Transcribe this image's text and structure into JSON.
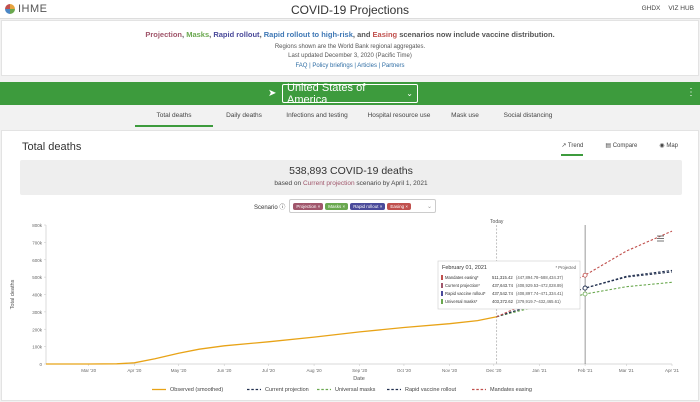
{
  "header": {
    "logo_text": "IHME",
    "title": "COVID-19 Projections",
    "links": [
      "GHDX",
      "VIZ HUB"
    ]
  },
  "banner": {
    "headline_parts": {
      "projection": "Projection",
      "masks": "Masks",
      "rapid_rollout": "Rapid rollout",
      "rapid_rollout_high_risk": "Rapid rollout to high-risk",
      "and": "and",
      "easing": "Easing",
      "tail": "scenarios now include vaccine distribution."
    },
    "regions_note": "Regions shown are the World Bank regional aggregates.",
    "last_updated": "Last updated December 3, 2020 (Pacific Time)",
    "links": [
      "FAQ",
      "Policy briefings",
      "Articles",
      "Partners"
    ]
  },
  "location": {
    "selected": "United States of America"
  },
  "tabs": [
    {
      "label": "Total deaths",
      "active": true
    },
    {
      "label": "Daily deaths",
      "active": false
    },
    {
      "label": "Infections and testing",
      "active": false
    },
    {
      "label": "Hospital resource use",
      "active": false
    },
    {
      "label": "Mask use",
      "active": false
    },
    {
      "label": "Social distancing",
      "active": false
    }
  ],
  "panel": {
    "title": "Total deaths",
    "view_tabs": [
      {
        "label": "Trend",
        "icon": "trend-icon",
        "active": true
      },
      {
        "label": "Compare",
        "icon": "compare-icon",
        "active": false
      },
      {
        "label": "Map",
        "icon": "globe-icon",
        "active": false
      }
    ]
  },
  "summary": {
    "headline": "538,893 COVID-19 deaths",
    "pre": "based on",
    "scenario": "Current projection",
    "post": "scenario by April 1, 2021"
  },
  "scenario": {
    "label": "Scenario",
    "chips": [
      {
        "label": "Projection",
        "color": "#a0566b"
      },
      {
        "label": "Masks",
        "color": "#6aa84f"
      },
      {
        "label": "Rapid rollout",
        "color": "#4a4a9a"
      },
      {
        "label": "Easing",
        "color": "#c0504d"
      }
    ]
  },
  "chart_data": {
    "type": "line",
    "xlabel": "Date",
    "ylabel": "Total deaths",
    "ylim": [
      0,
      800000
    ],
    "yticks": [
      0,
      100000,
      200000,
      300000,
      400000,
      500000,
      600000,
      700000,
      800000
    ],
    "ytick_labels": [
      "0",
      "100k",
      "200k",
      "300k",
      "400k",
      "500k",
      "600k",
      "700k",
      "800k"
    ],
    "xlim": [
      "2020-02-01",
      "2021-04-01"
    ],
    "xtick_dates": [
      "2020-03-01",
      "2020-04-01",
      "2020-05-01",
      "2020-06-01",
      "2020-07-01",
      "2020-08-01",
      "2020-09-01",
      "2020-10-01",
      "2020-11-01",
      "2020-12-01",
      "2021-01-01",
      "2021-02-01",
      "2021-03-01",
      "2021-04-01"
    ],
    "xtick_labels": [
      "Mar '20",
      "Apr '20",
      "May '20",
      "Jun '20",
      "Jul '20",
      "Aug '20",
      "Sep '20",
      "Oct '20",
      "Nov '20",
      "Dec '20",
      "Jan '21",
      "Feb '21",
      "Mar '21",
      "Apr '21"
    ],
    "today": {
      "label": "Today",
      "date": "2020-12-03"
    },
    "hover_date": "2021-02-01",
    "series": [
      {
        "name": "Observed (smoothed)",
        "color": "#e8a317",
        "dash": false,
        "x": [
          "2020-02-01",
          "2020-03-01",
          "2020-03-20",
          "2020-04-01",
          "2020-04-15",
          "2020-05-01",
          "2020-05-15",
          "2020-06-01",
          "2020-07-01",
          "2020-08-01",
          "2020-09-01",
          "2020-10-01",
          "2020-11-01",
          "2020-11-20",
          "2020-12-03"
        ],
        "y": [
          0,
          0,
          1000,
          7000,
          30000,
          62000,
          85000,
          105000,
          128000,
          155000,
          185000,
          210000,
          232000,
          250000,
          272000
        ]
      },
      {
        "name": "Current projection",
        "color": "#22304f",
        "dash": true,
        "x": [
          "2020-12-03",
          "2021-01-01",
          "2021-02-01",
          "2021-03-01",
          "2021-04-01"
        ],
        "y": [
          272000,
          350000,
          437000,
          505000,
          538893
        ]
      },
      {
        "name": "Universal masks",
        "color": "#6aa84f",
        "dash": true,
        "x": [
          "2020-12-03",
          "2021-01-01",
          "2021-02-01",
          "2021-03-01",
          "2021-04-01"
        ],
        "y": [
          272000,
          335000,
          403000,
          445000,
          470000
        ]
      },
      {
        "name": "Rapid vaccine rollout",
        "color": "#22304f",
        "dash": true,
        "x": [
          "2020-12-03",
          "2021-01-01",
          "2021-02-01",
          "2021-03-01",
          "2021-04-01"
        ],
        "y": [
          272000,
          350000,
          437000,
          500000,
          530000
        ]
      },
      {
        "name": "Mandates easing",
        "color": "#c0504d",
        "dash": true,
        "x": [
          "2020-12-03",
          "2021-01-01",
          "2021-02-01",
          "2021-03-01",
          "2021-04-01"
        ],
        "y": [
          272000,
          380000,
          511000,
          650000,
          765000
        ]
      }
    ],
    "tooltip": {
      "date": "February 01, 2021",
      "note": "* Projected",
      "rows": [
        {
          "label": "Mandates easing*",
          "value": "511,315.42",
          "range": "(447,894.78–588,434.37)",
          "color": "#c0504d"
        },
        {
          "label": "Current projection*",
          "value": "437,643.74",
          "range": "(408,929.53–472,028.89)",
          "color": "#a0566b"
        },
        {
          "label": "Rapid vaccine rollout*",
          "value": "437,542.74",
          "range": "(408,897.74–471,334.41)",
          "color": "#4a4a9a"
        },
        {
          "label": "Universal masks*",
          "value": "403,372.62",
          "range": "(379,919.7–432,465.61)",
          "color": "#6aa84f"
        }
      ]
    },
    "legend_placement": "bottom"
  }
}
